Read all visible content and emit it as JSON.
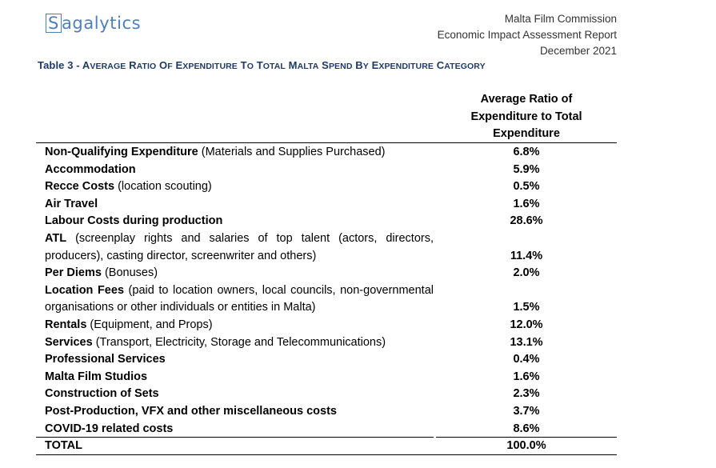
{
  "logo": {
    "first_letter": "S",
    "rest": "agalytics"
  },
  "header": {
    "line1": "Malta Film Commission",
    "line2": "Economic Impact Assessment Report",
    "line3": "December 2021"
  },
  "table": {
    "caption_prefix": "Table 3 - ",
    "caption_title": "Average Ratio of Expenditure to Total Malta Spend by Expenditure Category",
    "column_header_line1": "Average Ratio of",
    "column_header_line2": "Expenditure to Total",
    "column_header_line3": "Expenditure",
    "rows": [
      {
        "bold": "Non-Qualifying Expenditure",
        "rest": " (Materials and Supplies Purchased)",
        "value": "6.8%"
      },
      {
        "bold": "Accommodation",
        "rest": "",
        "value": "5.9%"
      },
      {
        "bold": "Recce Costs",
        "rest": " (location scouting)",
        "value": "0.5%"
      },
      {
        "bold": "Air Travel",
        "rest": "",
        "value": "1.6%"
      },
      {
        "bold": "Labour Costs during production",
        "rest": "",
        "value": "28.6%"
      },
      {
        "bold": "ATL",
        "rest": " (screenplay rights and salaries of top talent (actors, directors, producers), casting director, screenwriter and others)",
        "value": "11.4%"
      },
      {
        "bold": "Per Diems",
        "rest": " (Bonuses)",
        "value": "2.0%"
      },
      {
        "bold": "Location Fees",
        "rest": " (paid to location owners, local councils, non-governmental organisations or other individuals or entities in Malta)",
        "value": "1.5%"
      },
      {
        "bold": "Rentals",
        "rest": " (Equipment, and Props)",
        "value": "12.0%"
      },
      {
        "bold": "Services",
        "rest": " (Transport, Electricity, Storage and Telecommunications)",
        "value": "13.1%"
      },
      {
        "bold": "Professional Services",
        "rest": "",
        "value": "0.4%"
      },
      {
        "bold": "Malta Film Studios",
        "rest": "",
        "value": "1.6%"
      },
      {
        "bold": "Construction of Sets",
        "rest": "",
        "value": "2.3%"
      },
      {
        "bold": "Post-Production, VFX and other miscellaneous costs",
        "rest": "",
        "value": "3.7%"
      },
      {
        "bold": "COVID-19 related costs",
        "rest": "",
        "value": "8.6%"
      }
    ],
    "total": {
      "label": "TOTAL",
      "value": "100.0%"
    }
  }
}
